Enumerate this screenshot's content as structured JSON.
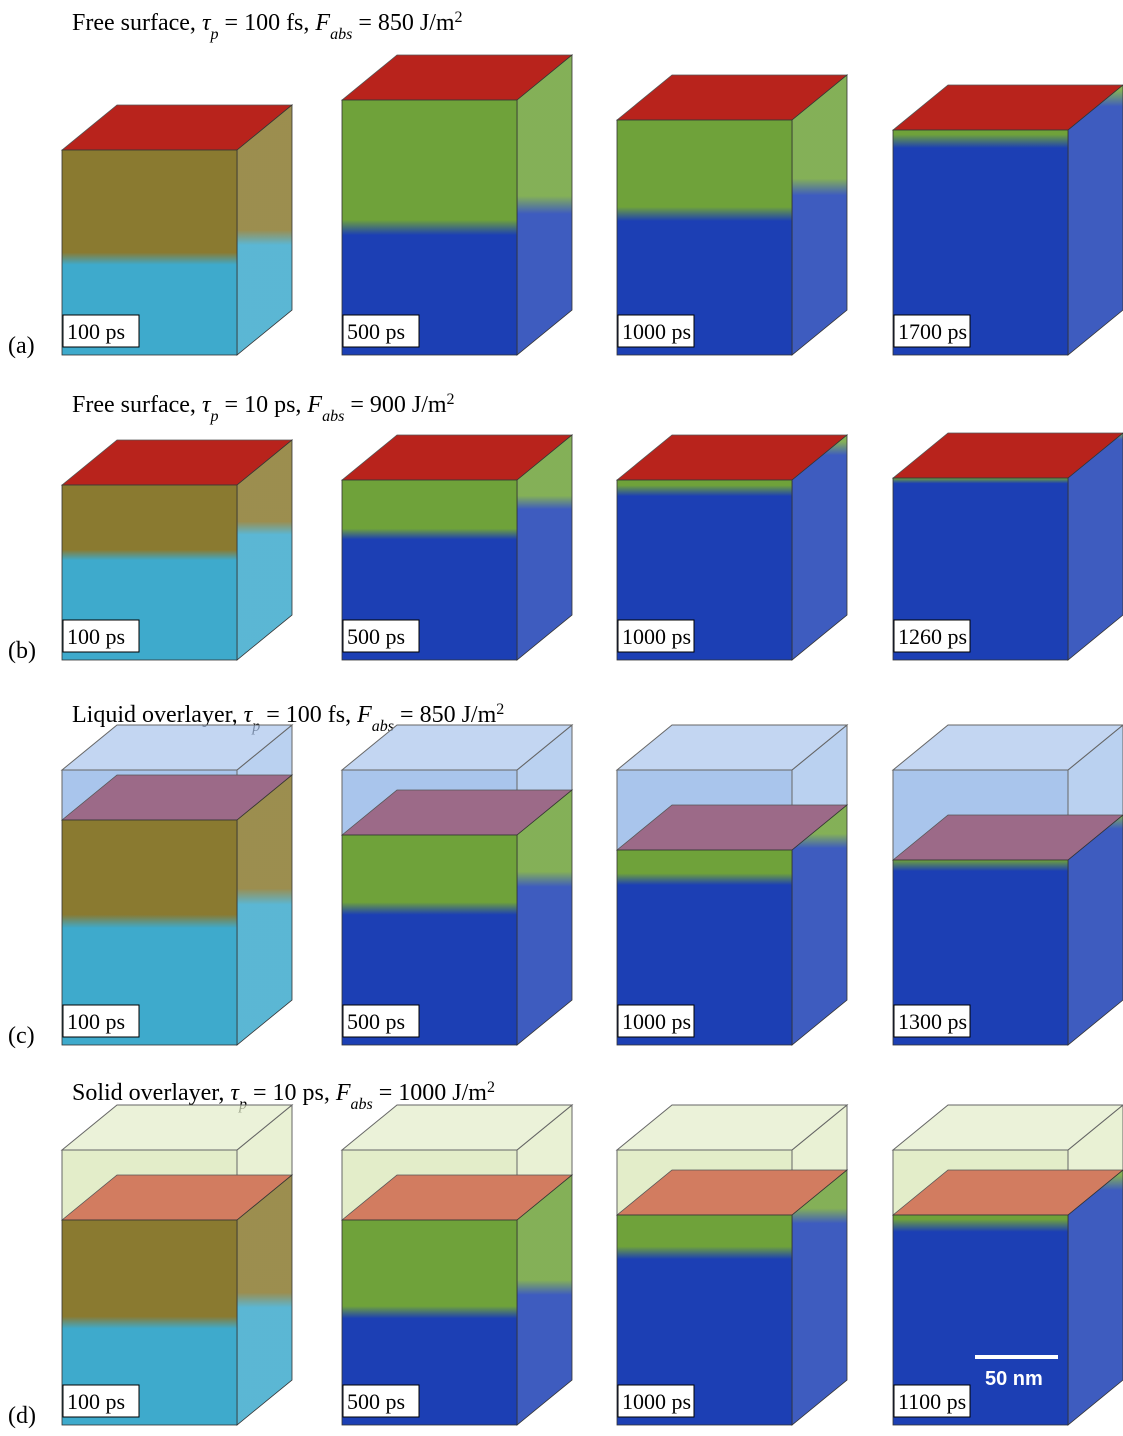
{
  "rows": [
    {
      "label": "(a)",
      "title": [
        "Free surface, ",
        "τ",
        "p",
        " = 100 fs, ",
        "F",
        "abs",
        " = 850 J/m",
        "2"
      ],
      "panels": [
        "100 ps",
        "500 ps",
        "1000 ps",
        "1700 ps"
      ]
    },
    {
      "label": "(b)",
      "title": [
        "Free surface, ",
        "τ",
        "p",
        " = 10 ps, ",
        "F",
        "abs",
        " = 900 J/m",
        "2"
      ],
      "panels": [
        "100 ps",
        "500 ps",
        "1000 ps",
        "1260 ps"
      ]
    },
    {
      "label": "(c)",
      "title": [
        "Liquid overlayer, ",
        "τ",
        "p",
        " = 100 fs, ",
        "F",
        "abs",
        " = 850 J/m",
        "2"
      ],
      "panels": [
        "100 ps",
        "500 ps",
        "1000 ps",
        "1300 ps"
      ]
    },
    {
      "label": "(d)",
      "title": [
        "Solid overlayer, ",
        "τ",
        "p",
        " = 10 ps, ",
        "F",
        "abs",
        " = 1000 J/m",
        "2"
      ],
      "panels": [
        "100 ps",
        "500 ps",
        "1000 ps",
        "1100 ps"
      ]
    }
  ],
  "scale_bar": "50 nm"
}
